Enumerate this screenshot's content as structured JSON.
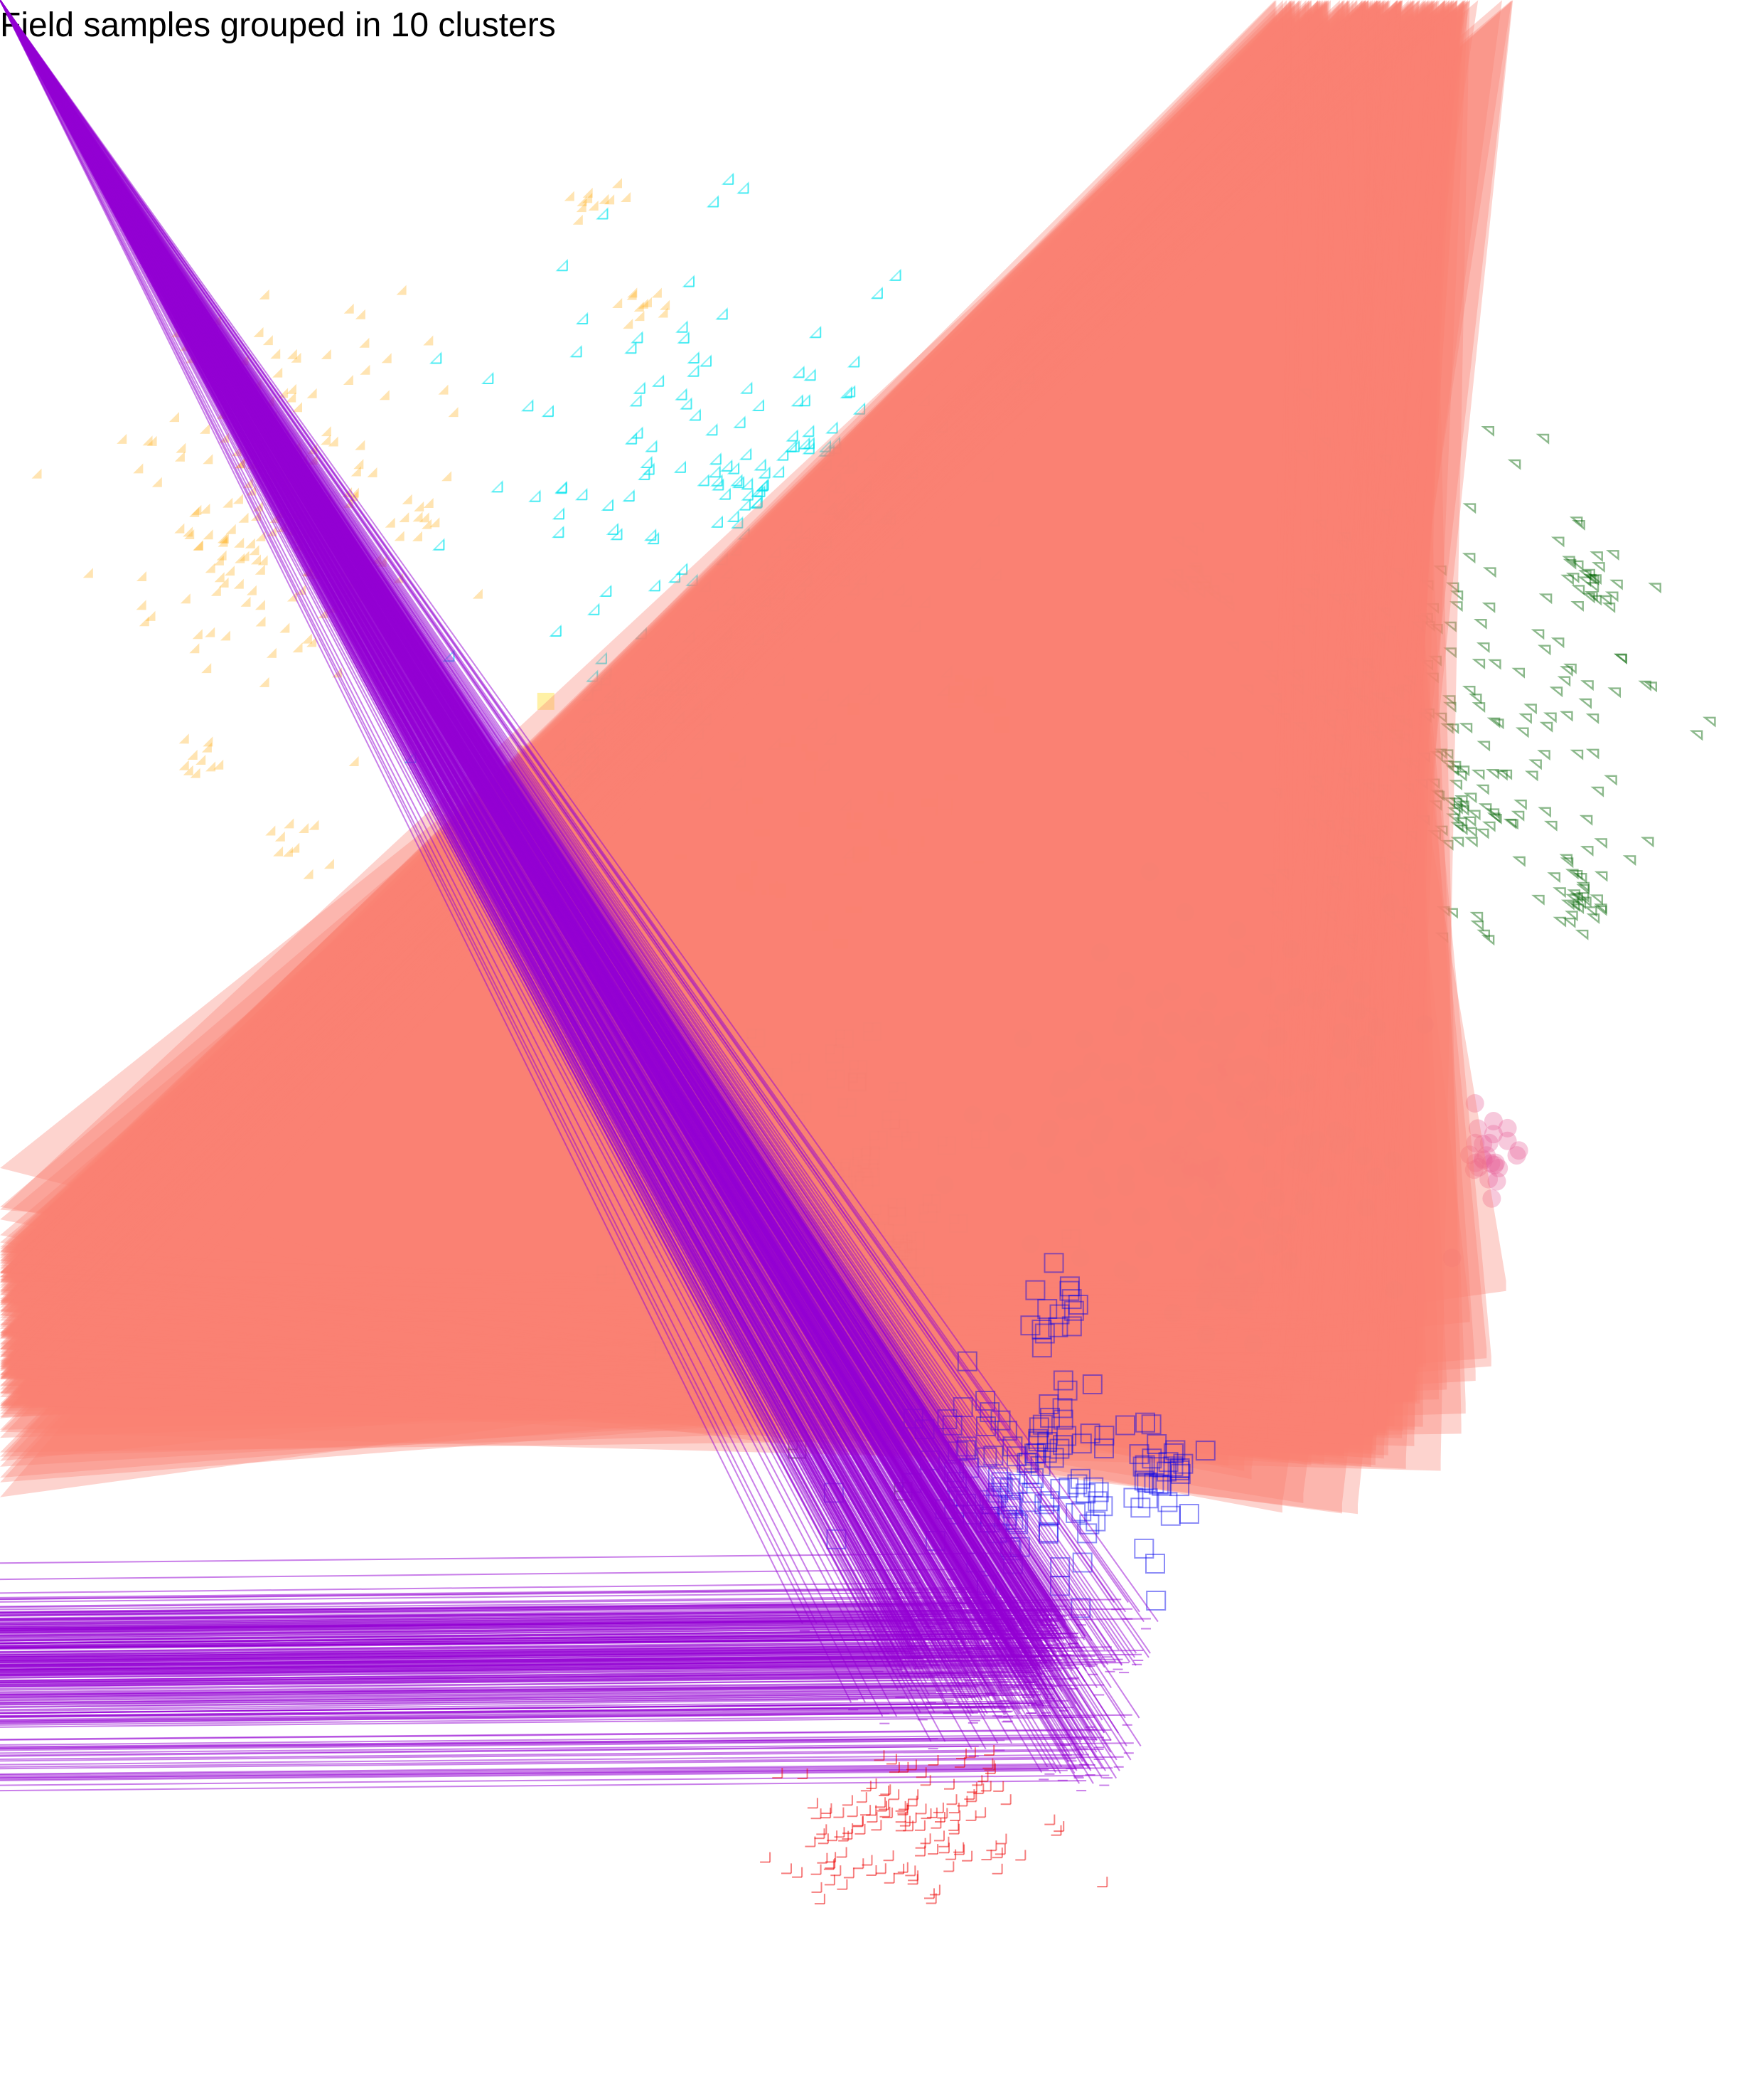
{
  "chart_data": {
    "type": "scatter",
    "title": "Field samples grouped in 10 clusters",
    "xlabel": "",
    "ylabel": "",
    "axes_visible": false,
    "grid": false,
    "legend": "none",
    "cluster_count": 10,
    "clusters": [
      {
        "id": 1,
        "marker": "diamond-filled",
        "color": "#FFA500",
        "opacity": 0.3,
        "center": [
          400,
          690
        ],
        "spread": [
          210,
          260
        ],
        "count": 220,
        "hotspots": [
          [
            843,
            290
          ],
          [
            905,
            445
          ],
          [
            600,
            745
          ],
          [
            290,
            1065
          ],
          [
            425,
            1195
          ],
          [
            342,
            813
          ]
        ]
      },
      {
        "id": 2,
        "marker": "diamond-plus",
        "color": "#00E5EE",
        "opacity": 0.45,
        "center": [
          1020,
          760
        ],
        "spread": [
          320,
          380
        ],
        "count": 260,
        "hotspots": [
          [
            1175,
            640
          ],
          [
            1055,
            695
          ],
          [
            1195,
            715
          ],
          [
            822,
            1055
          ],
          [
            785,
            1160
          ],
          [
            850,
            980
          ]
        ]
      },
      {
        "id": 3,
        "marker": "triangle-down-open",
        "color": "#006400",
        "opacity": 0.45,
        "center": [
          2020,
          1010
        ],
        "spread": [
          300,
          300
        ],
        "count": 320,
        "hotspots": [
          [
            2235,
            1270
          ],
          [
            2065,
            1150
          ],
          [
            2235,
            830
          ],
          [
            1700,
            820
          ]
        ]
      },
      {
        "id": 4,
        "marker": "square-filled",
        "color": "#FFD700",
        "opacity": 0.35,
        "center": [
          1160,
          1180
        ],
        "spread": [
          330,
          220
        ],
        "count": 160,
        "hotspots": [
          [
            1380,
            980
          ],
          [
            860,
            1420
          ]
        ]
      },
      {
        "id": 5,
        "marker": "circle-filled",
        "color": "#E8639A",
        "opacity": 0.35,
        "center": [
          1720,
          1560
        ],
        "spread": [
          260,
          240
        ],
        "count": 260,
        "hotspots": [
          [
            1690,
            1640
          ],
          [
            1720,
            1790
          ],
          [
            2100,
            1630
          ]
        ]
      },
      {
        "id": 6,
        "marker": "square-plus",
        "color": "#000000",
        "opacity": 0.45,
        "center": [
          1150,
          1700
        ],
        "spread": [
          200,
          240
        ],
        "count": 200,
        "hotspots": [
          [
            1120,
            1650
          ],
          [
            1000,
            1570
          ],
          [
            1120,
            1960
          ],
          [
            1265,
            1760
          ]
        ]
      },
      {
        "id": 7,
        "marker": "triangle-up-filled",
        "color": "#FA8072",
        "opacity": 0.35,
        "center": [
          1880,
          1960
        ],
        "spread": [
          200,
          140
        ],
        "count": 140,
        "hotspots": [
          [
            1940,
            2040
          ],
          [
            1815,
            1835
          ],
          [
            1930,
            1905
          ]
        ]
      },
      {
        "id": 8,
        "marker": "square-open",
        "color": "#0000EE",
        "opacity": 0.45,
        "center": [
          1480,
          2080
        ],
        "spread": [
          200,
          140
        ],
        "count": 160,
        "hotspots": [
          [
            1415,
            2120
          ],
          [
            1490,
            1840
          ],
          [
            1640,
            2060
          ]
        ]
      },
      {
        "id": 9,
        "marker": "asterisk",
        "color": "#9400D3",
        "opacity": 0.5,
        "center": [
          1420,
          2340
        ],
        "spread": [
          180,
          100
        ],
        "count": 220,
        "hotspots": [
          [
            1480,
            2305
          ],
          [
            1535,
            2490
          ],
          [
            1290,
            2330
          ]
        ]
      },
      {
        "id": 10,
        "marker": "plus",
        "color": "#EE0000",
        "opacity": 0.5,
        "center": [
          1260,
          2580
        ],
        "spread": [
          180,
          120
        ],
        "count": 140,
        "hotspots": [
          [
            1265,
            2540
          ],
          [
            1390,
            2505
          ],
          [
            1170,
            2610
          ]
        ]
      }
    ]
  }
}
